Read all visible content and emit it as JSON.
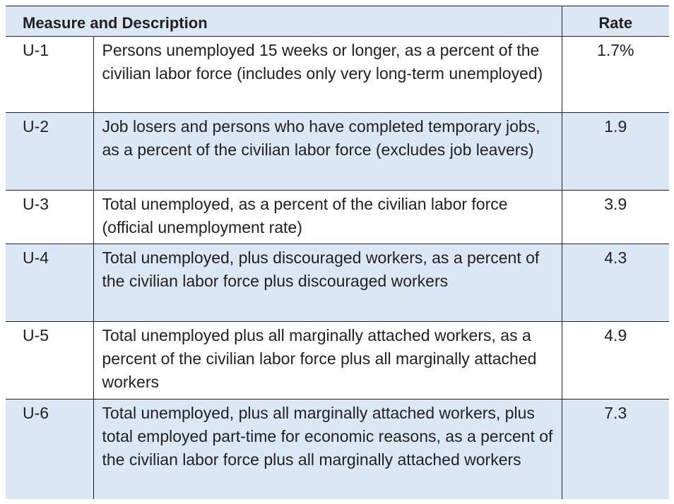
{
  "table": {
    "header": {
      "measure": "Measure and Description",
      "rate": "Rate"
    },
    "rows": [
      {
        "code": "U-1",
        "description": "Persons unemployed 15 weeks or longer, as a percent of the civilian labor force (includes only very long-term unemployed)",
        "rate": "1.7%"
      },
      {
        "code": "U-2",
        "description": "Job losers and persons who have completed temporary jobs, as a percent of the civilian labor force (excludes job leavers)",
        "rate": "1.9"
      },
      {
        "code": "U-3",
        "description": "Total unemployed, as a percent of the civilian labor force (official unemployment rate)",
        "rate": "3.9"
      },
      {
        "code": "U-4",
        "description": "Total unemployed, plus discouraged workers, as a percent of the civilian labor force plus discouraged workers",
        "rate": "4.3"
      },
      {
        "code": "U-5",
        "description": "Total unemployed plus all marginally attached workers, as a percent of the civilian labor force plus all marginally attached workers",
        "rate": "4.9"
      },
      {
        "code": "U-6",
        "description": "Total unemployed, plus all marginally attached workers, plus total employed part-time for economic reasons, as a percent of the civilian labor force plus all marginally attached workers",
        "rate": "7.3"
      }
    ]
  },
  "colors": {
    "shade": "#dce7f5",
    "rule": "#231f20",
    "text": "#231f20"
  }
}
